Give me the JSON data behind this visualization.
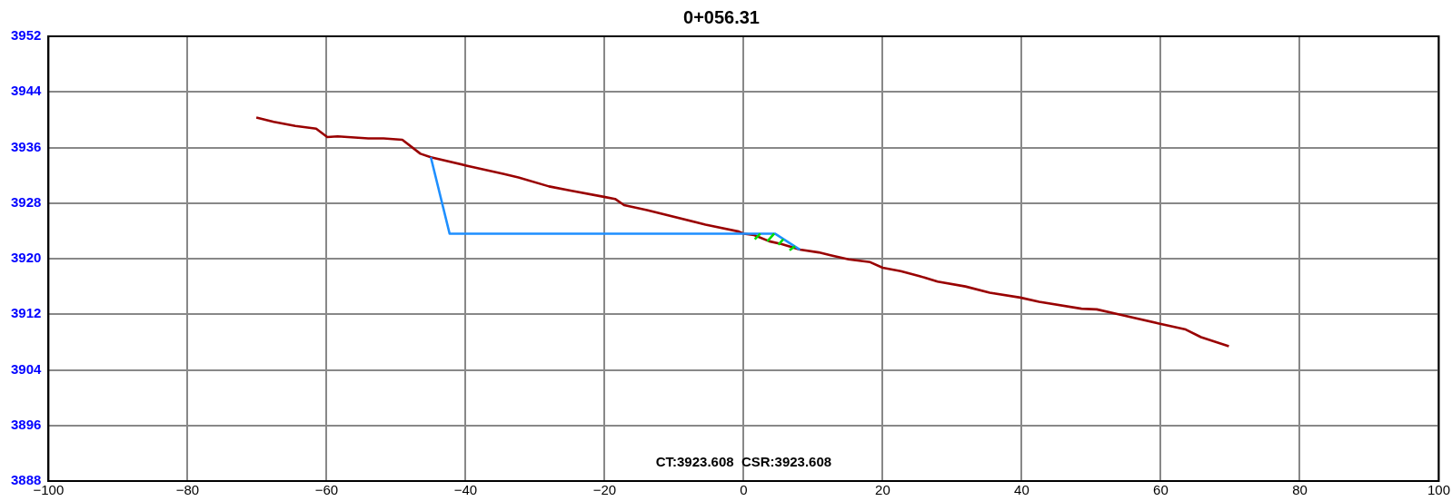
{
  "chart_data": {
    "type": "line",
    "title": "0+056.31",
    "xlim": [
      -100,
      100
    ],
    "xticks": [
      -100,
      -80,
      -60,
      -40,
      -20,
      0,
      20,
      40,
      60,
      80,
      100
    ],
    "ylim": [
      3888,
      3952
    ],
    "yticks": [
      3888,
      3896,
      3904,
      3912,
      3920,
      3928,
      3936,
      3944,
      3952
    ],
    "grid": true,
    "legend": false,
    "marker": "none",
    "line_style": "solid",
    "annotations": [
      "CT:3923.608  CSR:3923.608"
    ],
    "series": [
      {
        "color": "#990000",
        "x": [
          -70.1,
          -67.6,
          -64.5,
          -61.5,
          -59.9,
          -58.4,
          -54.0,
          -51.8,
          -49.1,
          -46.5,
          -45.0,
          -39.9,
          -34.6,
          -32.4,
          -28.0,
          -24.9,
          -20.1,
          -18.5,
          -17.2,
          -13.9,
          -5.5,
          -0.7,
          0,
          1.5,
          3.7,
          5.5,
          8.1,
          10.8,
          12.5,
          15.1,
          18.2,
          20.0,
          22.6,
          25.3,
          27.9,
          31.9,
          35.4,
          39.8,
          42.5,
          48.6,
          50.8,
          53.9,
          59.6,
          63.6,
          65.8,
          69.8
        ],
        "values": [
          3940.3,
          3939.7,
          3939.1,
          3938.7,
          3937.5,
          3937.6,
          3937.3,
          3937.3,
          3937.1,
          3935.1,
          3934.6,
          3933.4,
          3932.2,
          3931.7,
          3930.4,
          3929.8,
          3928.9,
          3928.6,
          3927.7,
          3927.0,
          3924.9,
          3923.9,
          3923.6,
          3923.4,
          3922.5,
          3922.1,
          3921.3,
          3920.9,
          3920.5,
          3919.9,
          3919.5,
          3918.7,
          3918.2,
          3917.5,
          3916.7,
          3916.0,
          3915.1,
          3914.4,
          3913.8,
          3912.8,
          3912.7,
          3912.0,
          3910.7,
          3909.8,
          3908.7,
          3907.4
        ]
      },
      {
        "color": "#1e8fff",
        "x": [
          -45.0,
          -42.3,
          0,
          4.5,
          8.1
        ],
        "values": [
          3934.6,
          3923.6,
          3923.6,
          3923.6,
          3921.3
        ]
      },
      {
        "color": "#00dd00",
        "x": [
          2.4,
          1.6,
          null,
          4.4,
          3.4,
          null,
          5.7,
          5.0,
          null,
          7.4,
          6.6
        ],
        "values": [
          3923.6,
          3922.8,
          null,
          3923.6,
          3922.5,
          null,
          3922.8,
          3922.0,
          null,
          3921.8,
          3921.2
        ]
      }
    ]
  }
}
